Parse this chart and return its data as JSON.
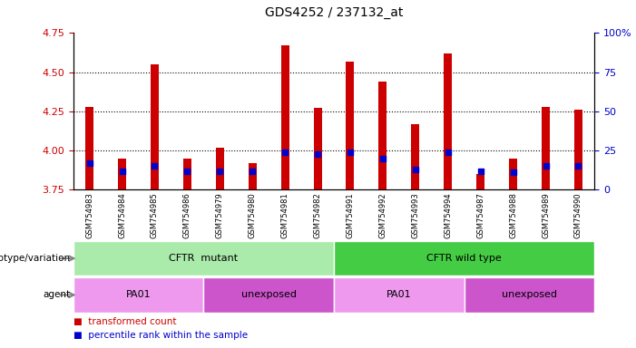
{
  "title": "GDS4252 / 237132_at",
  "samples": [
    "GSM754983",
    "GSM754984",
    "GSM754985",
    "GSM754986",
    "GSM754979",
    "GSM754980",
    "GSM754981",
    "GSM754982",
    "GSM754991",
    "GSM754992",
    "GSM754993",
    "GSM754994",
    "GSM754987",
    "GSM754988",
    "GSM754989",
    "GSM754990"
  ],
  "transformed_count": [
    4.28,
    3.95,
    4.55,
    3.95,
    4.02,
    3.92,
    4.67,
    4.27,
    4.57,
    4.44,
    4.17,
    4.62,
    3.85,
    3.95,
    4.28,
    4.26
  ],
  "percentile_rank": [
    17,
    12,
    15,
    12,
    12,
    12,
    24,
    23,
    24,
    20,
    13,
    24,
    12,
    11,
    15,
    15
  ],
  "ylim_left": [
    3.75,
    4.75
  ],
  "ylim_right": [
    0,
    100
  ],
  "yticks_left": [
    3.75,
    4.0,
    4.25,
    4.5,
    4.75
  ],
  "yticks_right": [
    0,
    25,
    50,
    75,
    100
  ],
  "bar_color": "#cc0000",
  "dot_color": "#0000cc",
  "bar_bottom": 3.75,
  "bar_width": 0.25,
  "dot_size": 18,
  "groups": {
    "genotype": [
      {
        "label": "CFTR  mutant",
        "start": 0,
        "end": 8,
        "color": "#aaeaaa"
      },
      {
        "label": "CFTR wild type",
        "start": 8,
        "end": 16,
        "color": "#44cc44"
      }
    ],
    "agent": [
      {
        "label": "PA01",
        "start": 0,
        "end": 4,
        "color": "#ee99ee"
      },
      {
        "label": "unexposed",
        "start": 4,
        "end": 8,
        "color": "#cc55cc"
      },
      {
        "label": "PA01",
        "start": 8,
        "end": 12,
        "color": "#ee99ee"
      },
      {
        "label": "unexposed",
        "start": 12,
        "end": 16,
        "color": "#cc55cc"
      }
    ]
  },
  "legend": [
    {
      "color": "#cc0000",
      "label": "transformed count"
    },
    {
      "color": "#0000cc",
      "label": "percentile rank within the sample"
    }
  ],
  "tick_color_left": "#cc0000",
  "tick_color_right": "#0000cc",
  "background_color": "#ffffff",
  "xtick_bg": "#dddddd"
}
